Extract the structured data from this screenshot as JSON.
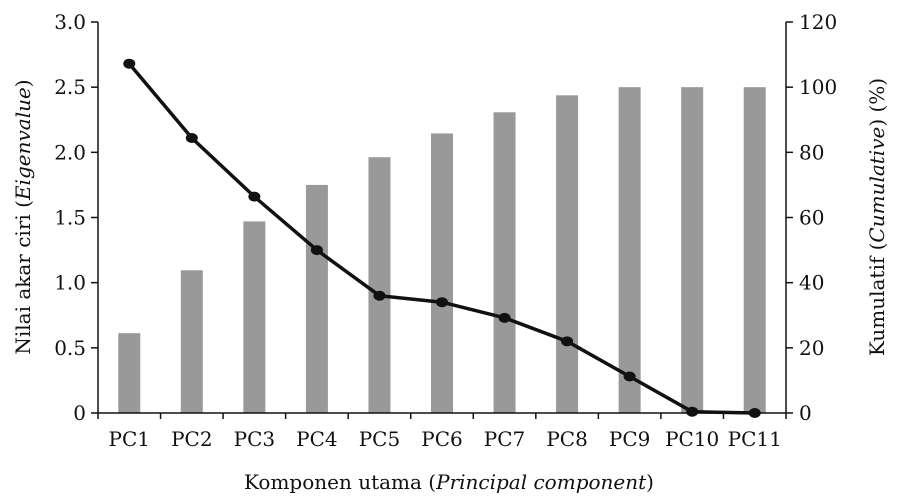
{
  "chart_data": {
    "type": "bar",
    "categories": [
      "PC1",
      "PC2",
      "PC3",
      "PC4",
      "PC5",
      "PC6",
      "PC7",
      "PC8",
      "PC9",
      "PC10",
      "PC11"
    ],
    "series": [
      {
        "values": [
          24.5,
          43.8,
          58.8,
          70.0,
          78.5,
          85.8,
          92.3,
          97.5,
          100,
          100,
          100
        ],
        "type": "bar",
        "axis": "right",
        "color": "#999999"
      },
      {
        "values": [
          2.68,
          2.11,
          1.66,
          1.25,
          0.9,
          0.85,
          0.73,
          0.55,
          0.28,
          0.01,
          0.0
        ],
        "type": "line",
        "axis": "left",
        "color": "#111111"
      }
    ],
    "xlabel": {
      "prefix": "Komponen utama (",
      "italic": "Principal component",
      "suffix": ")"
    },
    "ylabel_left": {
      "prefix": "Nilai akar ciri (",
      "italic": "Eigenvalue",
      "suffix": ")"
    },
    "ylabel_right": {
      "prefix": "Kumulatif (",
      "italic": "Cumulative",
      "suffix": ") (%)"
    },
    "ylim_left": [
      0,
      3
    ],
    "ylim_right": [
      0,
      120
    ],
    "left_ticks": [
      "0",
      "0.5",
      "1.0",
      "1.5",
      "2.0",
      "2.5",
      "3.0"
    ],
    "left_tick_values": [
      0,
      0.5,
      1.0,
      1.5,
      2.0,
      2.5,
      3.0
    ],
    "right_ticks": [
      "0",
      "20",
      "40",
      "60",
      "80",
      "100",
      "120"
    ],
    "right_tick_values": [
      0,
      20,
      40,
      60,
      80,
      100,
      120
    ],
    "grid": false,
    "legend": "none"
  }
}
